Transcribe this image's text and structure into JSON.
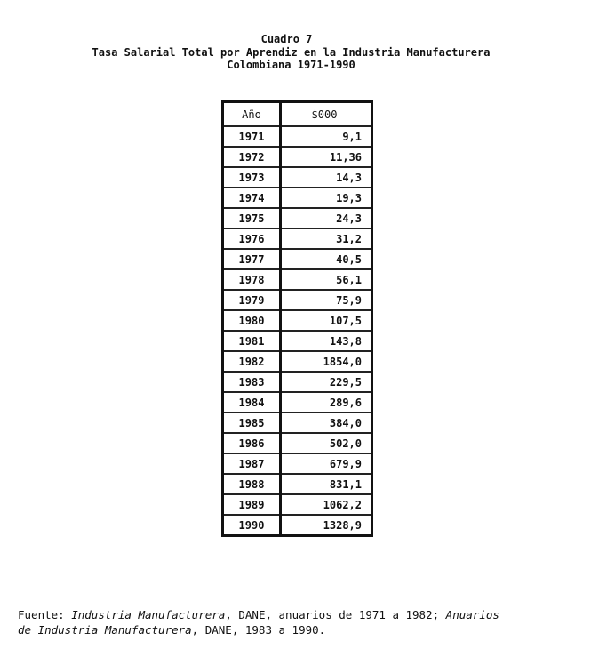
{
  "title": {
    "line1": "Cuadro 7",
    "line2": "Tasa Salarial Total por Aprendiz en la Industria Manufacturera",
    "line3": "Colombiana 1971-1990"
  },
  "table": {
    "headers": [
      "Año",
      "$000"
    ],
    "rows": [
      [
        "1971",
        "9,1"
      ],
      [
        "1972",
        "11,36"
      ],
      [
        "1973",
        "14,3"
      ],
      [
        "1974",
        "19,3"
      ],
      [
        "1975",
        "24,3"
      ],
      [
        "1976",
        "31,2"
      ],
      [
        "1977",
        "40,5"
      ],
      [
        "1978",
        "56,1"
      ],
      [
        "1979",
        "75,9"
      ],
      [
        "1980",
        "107,5"
      ],
      [
        "1981",
        "143,8"
      ],
      [
        "1982",
        "1854,0"
      ],
      [
        "1983",
        "229,5"
      ],
      [
        "1984",
        "289,6"
      ],
      [
        "1985",
        "384,0"
      ],
      [
        "1986",
        "502,0"
      ],
      [
        "1987",
        "679,9"
      ],
      [
        "1988",
        "831,1"
      ],
      [
        "1989",
        "1062,2"
      ],
      [
        "1990",
        "1328,9"
      ]
    ]
  },
  "footnote": {
    "prefix": "Fuente: ",
    "source1": "Industria Manufacturera",
    "mid1": ", DANE, anuarios de 1971 a 1982; ",
    "source2a": "Anuarios",
    "source2b": "de Industria Manufacturera",
    "end": ", DANE, 1983 a 1990."
  }
}
